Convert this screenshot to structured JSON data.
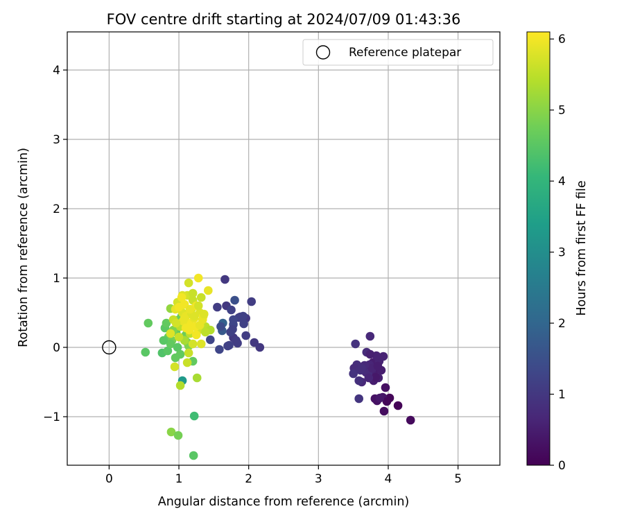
{
  "chart_data": {
    "type": "scatter",
    "title": "FOV centre drift starting at 2024/07/09 01:43:36",
    "xlabel": "Angular distance from reference (arcmin)",
    "ylabel": "Rotation from reference (arcmin)",
    "xlim": [
      -0.6,
      5.6
    ],
    "ylim": [
      -1.7,
      4.55
    ],
    "xticks": [
      0,
      1,
      2,
      3,
      4,
      5
    ],
    "xtick_labels": [
      "0",
      "1",
      "2",
      "3",
      "4",
      "5"
    ],
    "yticks": [
      -1,
      0,
      1,
      2,
      3,
      4
    ],
    "ytick_labels": [
      "−1",
      "0",
      "1",
      "2",
      "3",
      "4"
    ],
    "grid": true,
    "legend": {
      "position": "upper right",
      "entries": [
        "Reference platepar"
      ]
    },
    "reference_point": {
      "x": 0,
      "y": 0,
      "label": "Reference platepar"
    },
    "colorbar": {
      "label": "Hours from first FF file",
      "range": [
        0,
        6.1
      ],
      "ticks": [
        0,
        1,
        2,
        3,
        4,
        5,
        6
      ],
      "tick_labels": [
        "0",
        "1",
        "2",
        "3",
        "4",
        "5",
        "6"
      ],
      "colormap": "viridis",
      "stops": [
        "#440154",
        "#482878",
        "#3e4989",
        "#31688e",
        "#26828e",
        "#1f9e89",
        "#35b779",
        "#6ece58",
        "#b5de2b",
        "#fde725"
      ]
    },
    "series": [
      {
        "x": [
          4.32,
          4.14,
          4.02,
          3.94,
          3.96,
          3.84,
          3.81,
          3.92,
          3.98,
          3.88,
          3.79,
          3.86,
          3.8,
          3.75,
          3.84,
          3.78,
          3.73,
          3.87,
          3.76,
          3.82,
          3.68,
          3.71,
          3.77,
          3.9,
          3.64,
          3.62,
          3.58,
          3.55,
          3.51,
          3.5,
          3.53,
          3.6,
          3.66,
          3.72,
          3.69,
          3.83,
          3.85,
          3.74,
          3.93,
          3.58,
          3.62,
          3.74
        ],
        "y": [
          -1.05,
          -0.84,
          -0.73,
          -0.92,
          -0.58,
          -0.77,
          -0.74,
          -0.72,
          -0.78,
          -0.73,
          -0.48,
          -0.44,
          -0.4,
          -0.35,
          -0.3,
          -0.22,
          -0.25,
          -0.2,
          -0.35,
          -0.43,
          -0.36,
          -0.38,
          -0.3,
          -0.33,
          -0.28,
          -0.5,
          -0.48,
          -0.25,
          -0.3,
          -0.38,
          0.05,
          -0.33,
          -0.26,
          -0.44,
          -0.07,
          -0.12,
          -0.27,
          0.16,
          -0.13,
          -0.74,
          -0.3,
          -0.1
        ],
        "t": [
          0.15,
          0.05,
          0.1,
          0.2,
          0.25,
          0.3,
          0.3,
          0.35,
          0.1,
          0.4,
          0.5,
          0.55,
          0.5,
          0.6,
          0.45,
          0.5,
          0.65,
          0.6,
          0.55,
          0.4,
          0.7,
          0.75,
          0.6,
          0.5,
          0.8,
          0.7,
          0.85,
          0.8,
          0.75,
          0.9,
          0.9,
          0.85,
          0.7,
          0.65,
          0.75,
          0.6,
          0.5,
          0.7,
          0.6,
          0.95,
          0.8,
          0.55
        ]
      },
      {
        "x": [
          1.66,
          1.55,
          1.68,
          1.75,
          1.8,
          1.96,
          1.86,
          1.93,
          1.78,
          1.88,
          1.96,
          1.78,
          2.04,
          2.08,
          2.16,
          1.72,
          1.82,
          1.74,
          1.62,
          1.58,
          1.7,
          1.84,
          1.78,
          1.92,
          1.63,
          1.45,
          1.6,
          1.77
        ],
        "y": [
          0.98,
          0.58,
          0.6,
          0.54,
          0.68,
          0.42,
          0.43,
          0.34,
          0.33,
          0.44,
          0.17,
          0.14,
          0.66,
          0.07,
          0.0,
          0.03,
          0.1,
          0.22,
          0.24,
          -0.03,
          0.02,
          0.06,
          0.4,
          0.45,
          0.35,
          0.11,
          0.3,
          0.26
        ],
        "t": [
          1.0,
          1.1,
          1.0,
          1.2,
          1.5,
          1.0,
          1.1,
          1.2,
          1.3,
          1.2,
          1.1,
          1.0,
          1.1,
          1.0,
          1.0,
          1.2,
          1.1,
          1.2,
          1.7,
          1.3,
          1.2,
          1.1,
          1.3,
          1.2,
          1.9,
          1.3,
          1.4,
          1.2
        ]
      },
      {
        "x": [
          0.52,
          0.56,
          0.76,
          0.8,
          0.85,
          0.9,
          0.96,
          1.0,
          1.04,
          1.06,
          1.1,
          1.12,
          0.84,
          0.88,
          0.92,
          0.98,
          1.0,
          1.02,
          1.08,
          1.14,
          0.78,
          0.82,
          1.05,
          1.2,
          0.89,
          0.99,
          1.21,
          1.22,
          0.95,
          0.88
        ],
        "y": [
          -0.07,
          0.35,
          -0.08,
          0.28,
          0.15,
          0.1,
          0.22,
          0.3,
          0.45,
          0.35,
          0.18,
          0.07,
          -0.05,
          0.05,
          0.25,
          0.0,
          0.4,
          -0.1,
          0.12,
          0.02,
          0.1,
          0.35,
          -0.48,
          -0.2,
          -1.22,
          -1.27,
          -1.56,
          -0.99,
          -0.15,
          0.56
        ],
        "t": [
          4.5,
          4.6,
          4.4,
          4.5,
          4.7,
          4.8,
          4.6,
          4.5,
          4.4,
          4.6,
          4.7,
          4.8,
          4.5,
          4.6,
          4.9,
          4.5,
          4.7,
          4.6,
          4.8,
          4.9,
          4.5,
          4.6,
          3.3,
          4.6,
          5.0,
          4.8,
          4.5,
          4.2,
          4.6,
          5.1
        ]
      },
      {
        "x": [
          0.88,
          0.92,
          0.95,
          0.98,
          1.02,
          1.05,
          1.08,
          1.1,
          1.12,
          1.15,
          1.18,
          1.2,
          1.22,
          1.25,
          1.28,
          1.3,
          1.32,
          1.35,
          1.38,
          1.42,
          1.45,
          1.14,
          1.28,
          1.05,
          1.0,
          1.2,
          1.16,
          1.08,
          1.26,
          0.94,
          1.02,
          1.12,
          1.34,
          1.24,
          1.18,
          1.06,
          0.96,
          1.1,
          1.22,
          1.3,
          1.15,
          1.38,
          1.0,
          1.2,
          1.14,
          1.25,
          1.32,
          1.08,
          1.28,
          1.04,
          1.16,
          1.36
        ],
        "y": [
          0.2,
          0.4,
          0.55,
          0.65,
          0.3,
          0.5,
          0.62,
          0.45,
          0.75,
          0.35,
          0.55,
          0.68,
          0.42,
          0.6,
          0.25,
          0.5,
          0.72,
          0.45,
          0.3,
          0.82,
          0.25,
          0.93,
          1.0,
          0.75,
          0.58,
          0.78,
          0.2,
          0.1,
          -0.44,
          -0.28,
          -0.55,
          -0.22,
          0.4,
          0.3,
          0.48,
          0.38,
          0.35,
          0.28,
          0.45,
          0.32,
          0.25,
          0.22,
          0.15,
          0.05,
          -0.08,
          0.18,
          0.05,
          0.42,
          0.6,
          0.72,
          0.55,
          0.48
        ],
        "t": [
          5.8,
          5.6,
          5.9,
          5.7,
          5.5,
          5.8,
          6.0,
          5.9,
          5.7,
          6.0,
          5.8,
          5.6,
          5.9,
          6.0,
          5.7,
          5.8,
          5.6,
          6.0,
          5.5,
          5.9,
          5.4,
          5.7,
          6.0,
          5.8,
          6.0,
          5.6,
          5.5,
          5.3,
          5.3,
          5.7,
          5.4,
          5.6,
          5.9,
          6.0,
          5.8,
          5.9,
          5.7,
          6.0,
          5.8,
          5.9,
          6.0,
          5.5,
          5.6,
          5.7,
          5.6,
          6.0,
          5.8,
          5.9,
          5.7,
          6.0,
          5.9,
          5.8
        ]
      }
    ]
  }
}
